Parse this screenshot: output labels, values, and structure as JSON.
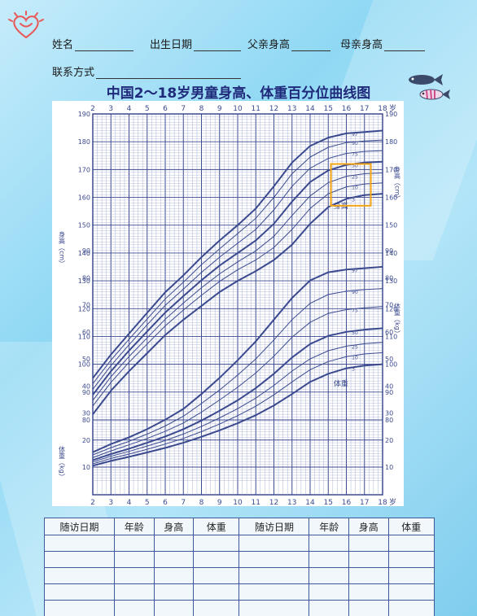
{
  "form": {
    "name_label": "姓名",
    "birth_label": "出生日期",
    "father_label": "父亲身高",
    "mother_label": "母亲身高",
    "contact_label": "联系方式"
  },
  "chart_title": "中国2～18岁男童身高、体重百分位曲线图",
  "chart_data": {
    "type": "line",
    "title": "中国2～18岁男童身高、体重百分位曲线图",
    "x": [
      2,
      3,
      4,
      5,
      6,
      7,
      8,
      9,
      10,
      11,
      12,
      13,
      14,
      15,
      16,
      17,
      18
    ],
    "x_unit": "岁",
    "xlim": [
      2,
      18
    ],
    "height_ylim": [
      80,
      190
    ],
    "weight_ylim": [
      5,
      95
    ],
    "height_axis_label": "身高（cm）",
    "weight_axis_label": "体重（kg）",
    "grid": true,
    "height_curve_label": "身高",
    "weight_curve_label": "体重",
    "height_series": [
      {
        "name": "97",
        "values": [
          95.0,
          103.5,
          111.0,
          118.5,
          125.9,
          132.0,
          138.5,
          144.5,
          150.0,
          156.0,
          164.0,
          172.5,
          178.5,
          181.5,
          183.0,
          183.5,
          184.0
        ]
      },
      {
        "name": "90",
        "values": [
          93.0,
          101.5,
          109.0,
          116.3,
          123.5,
          129.5,
          135.8,
          141.5,
          147.0,
          152.5,
          160.0,
          168.5,
          174.5,
          178.0,
          179.7,
          180.3,
          180.6
        ]
      },
      {
        "name": "75",
        "values": [
          91.0,
          99.5,
          107.0,
          114.2,
          121.2,
          127.0,
          133.0,
          138.5,
          143.5,
          148.5,
          155.5,
          164.0,
          170.5,
          174.0,
          175.8,
          176.5,
          176.8
        ]
      },
      {
        "name": "50",
        "values": [
          89.0,
          97.5,
          104.9,
          111.8,
          118.6,
          124.5,
          130.2,
          135.5,
          140.0,
          144.5,
          150.5,
          158.5,
          165.5,
          169.7,
          171.7,
          172.5,
          172.8
        ]
      },
      {
        "name": "25",
        "values": [
          87.0,
          95.5,
          102.8,
          109.5,
          116.2,
          122.0,
          127.5,
          132.5,
          136.8,
          140.8,
          146.0,
          153.5,
          160.5,
          165.3,
          167.6,
          168.5,
          168.8
        ]
      },
      {
        "name": "10",
        "values": [
          85.0,
          93.5,
          100.7,
          107.3,
          113.8,
          119.5,
          124.8,
          129.8,
          134.0,
          137.5,
          142.0,
          148.5,
          156.0,
          161.3,
          163.8,
          164.8,
          165.2
        ]
      },
      {
        "name": "3",
        "values": [
          82.0,
          90.5,
          97.5,
          104.0,
          110.5,
          116.0,
          121.0,
          126.0,
          130.0,
          133.5,
          137.5,
          143.0,
          150.5,
          156.5,
          159.5,
          160.8,
          161.3
        ]
      }
    ],
    "weight_series": [
      {
        "name": "97",
        "values": [
          15.5,
          18.5,
          21.0,
          24.0,
          27.5,
          31.5,
          37.0,
          43.0,
          49.5,
          56.5,
          64.5,
          72.5,
          79.0,
          82.0,
          83.0,
          83.5,
          84.0
        ]
      },
      {
        "name": "90",
        "values": [
          14.5,
          17.2,
          19.5,
          22.2,
          25.2,
          28.8,
          33.5,
          38.5,
          44.0,
          50.0,
          57.0,
          64.5,
          70.5,
          73.8,
          75.0,
          75.6,
          76.0
        ]
      },
      {
        "name": "75",
        "values": [
          13.5,
          16.0,
          18.2,
          20.6,
          23.2,
          26.3,
          30.3,
          34.8,
          39.5,
          44.8,
          51.0,
          58.0,
          63.5,
          66.8,
          68.2,
          68.9,
          69.3
        ]
      },
      {
        "name": "50",
        "values": [
          12.6,
          14.8,
          16.8,
          19.0,
          21.3,
          24.0,
          27.2,
          30.8,
          34.7,
          39.2,
          44.5,
          50.5,
          55.5,
          58.5,
          60.0,
          60.8,
          61.3
        ]
      },
      {
        "name": "25",
        "values": [
          11.9,
          14.0,
          15.8,
          17.8,
          19.8,
          22.2,
          25.0,
          28.2,
          31.6,
          35.5,
          40.2,
          45.5,
          50.0,
          53.0,
          54.7,
          55.6,
          56.1
        ]
      },
      {
        "name": "10",
        "values": [
          11.2,
          13.2,
          14.8,
          16.6,
          18.5,
          20.6,
          23.1,
          25.9,
          29.0,
          32.5,
          36.7,
          41.5,
          46.0,
          49.0,
          50.8,
          51.8,
          52.3
        ]
      },
      {
        "name": "3",
        "values": [
          10.5,
          12.3,
          13.8,
          15.4,
          17.1,
          19.0,
          21.2,
          23.6,
          26.2,
          29.2,
          32.8,
          37.0,
          41.5,
          44.5,
          46.5,
          47.5,
          48.0
        ]
      }
    ],
    "height_ticks": [
      80,
      90,
      100,
      110,
      120,
      130,
      140,
      150,
      160,
      170,
      180,
      190
    ],
    "weight_ticks": [
      10,
      20,
      30,
      40,
      50,
      60,
      70,
      80,
      90
    ]
  },
  "table": {
    "headers": [
      "随访日期",
      "年龄",
      "身高",
      "体重",
      "随访日期",
      "年龄",
      "身高",
      "体重"
    ],
    "empty_rows": 5
  },
  "colors": {
    "background": "#8fd8f4",
    "chart_blue": "#3b4a8f",
    "grid": "#8a97c5",
    "highlight": "#f2a413",
    "title": "#1f2a7a"
  }
}
